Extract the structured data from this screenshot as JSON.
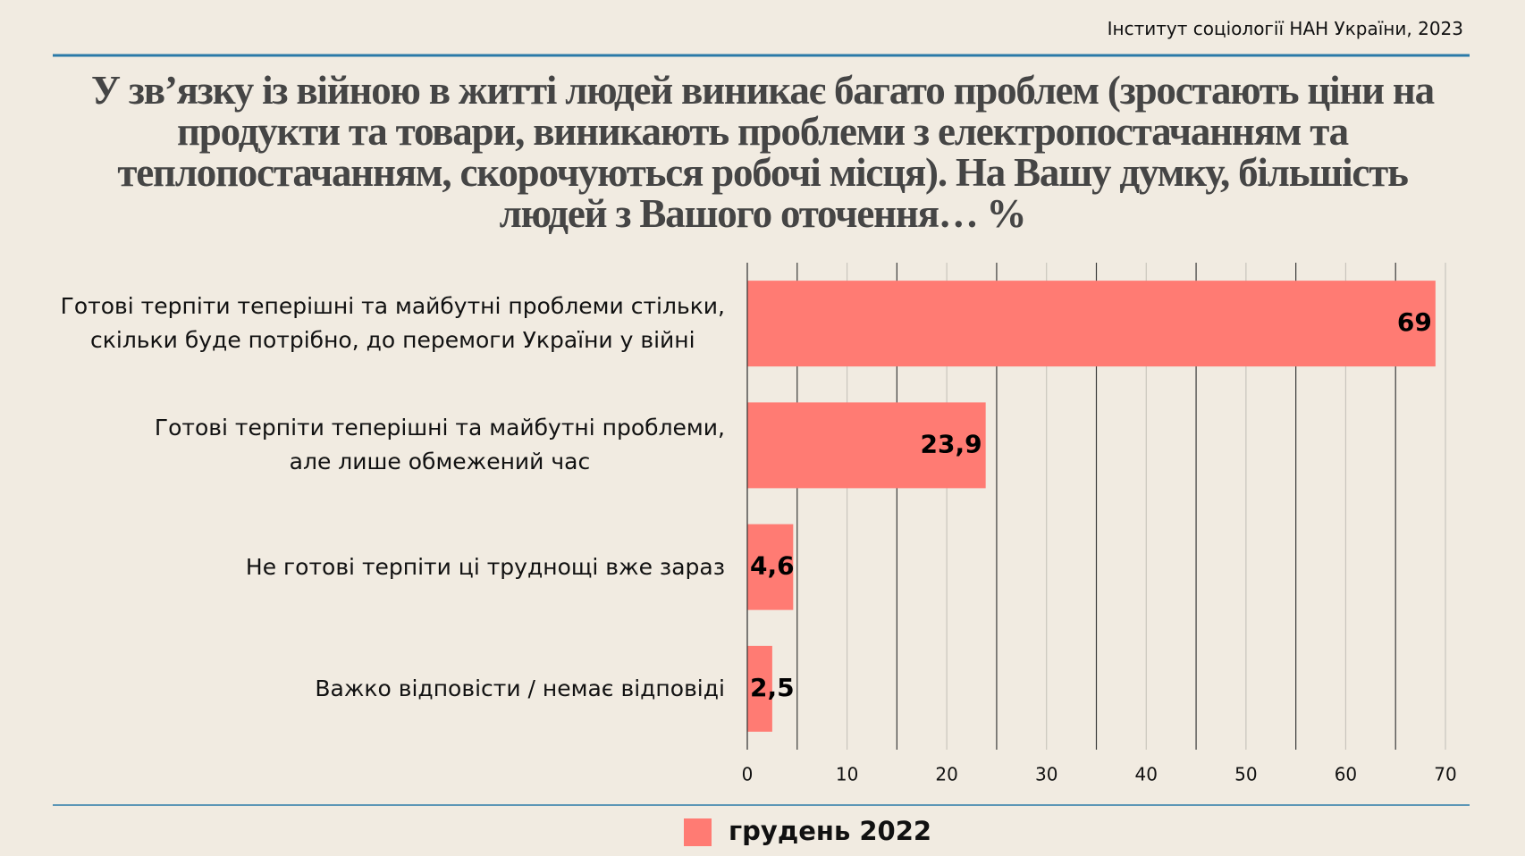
{
  "source": "Інститут соціології НАН України, 2023",
  "chart_data": {
    "type": "barh",
    "title": "У зв’язку із війною в житті людей виникає багато проблем (зростають ціни на продукти та товари, виникають проблеми з електропостачанням та теплопостачанням, скорочуються робочі місця). На Вашу думку, більшість людей з Вашого оточення… %",
    "categories": [
      "Готові терпіти теперішні та майбутні проблеми стільки,\nскільки буде потрібно, до перемоги України у війні",
      "Готові терпіти теперішні та майбутні проблеми,\nале лише обмежений час",
      "Не готові терпіти ці труднощі вже зараз",
      "Важко відповісти / немає відповіді"
    ],
    "series": [
      {
        "name": "грудень 2022",
        "color": "#ff7b73",
        "values": [
          69,
          23.9,
          4.6,
          2.5
        ],
        "value_labels": [
          "69",
          "23,9",
          "4,6",
          "2,5"
        ]
      }
    ],
    "xlim": [
      0,
      70
    ],
    "xticks": [
      0,
      10,
      20,
      30,
      40,
      50,
      60,
      70
    ],
    "xminor": [
      5,
      15,
      25,
      35,
      45,
      55,
      65
    ],
    "grid": true,
    "legend": "bottom"
  }
}
